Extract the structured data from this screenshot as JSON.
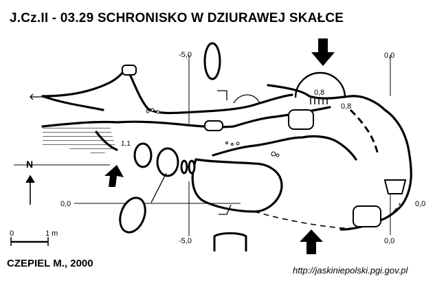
{
  "map": {
    "title": "J.Cz.II - 03.29 SCHRONISKO W DZIURAWEJ SKAŁCE",
    "author": "CZEPIEL M., 2000",
    "source_url": "http://jaskiniepolski.pgi.gov.pl",
    "north_label": "N",
    "scale": {
      "start": "0",
      "end": "1 m"
    },
    "section_labels": {
      "top_left": "-5,0",
      "top_right": "0,0",
      "left": "0,0",
      "right": "0,0",
      "bottom_left": "-5,0",
      "bottom_right": "0,0"
    },
    "depth_labels": {
      "entrance_upper": "0,8",
      "entrance_lower": "0,8",
      "left_entrance": "1,1"
    }
  }
}
